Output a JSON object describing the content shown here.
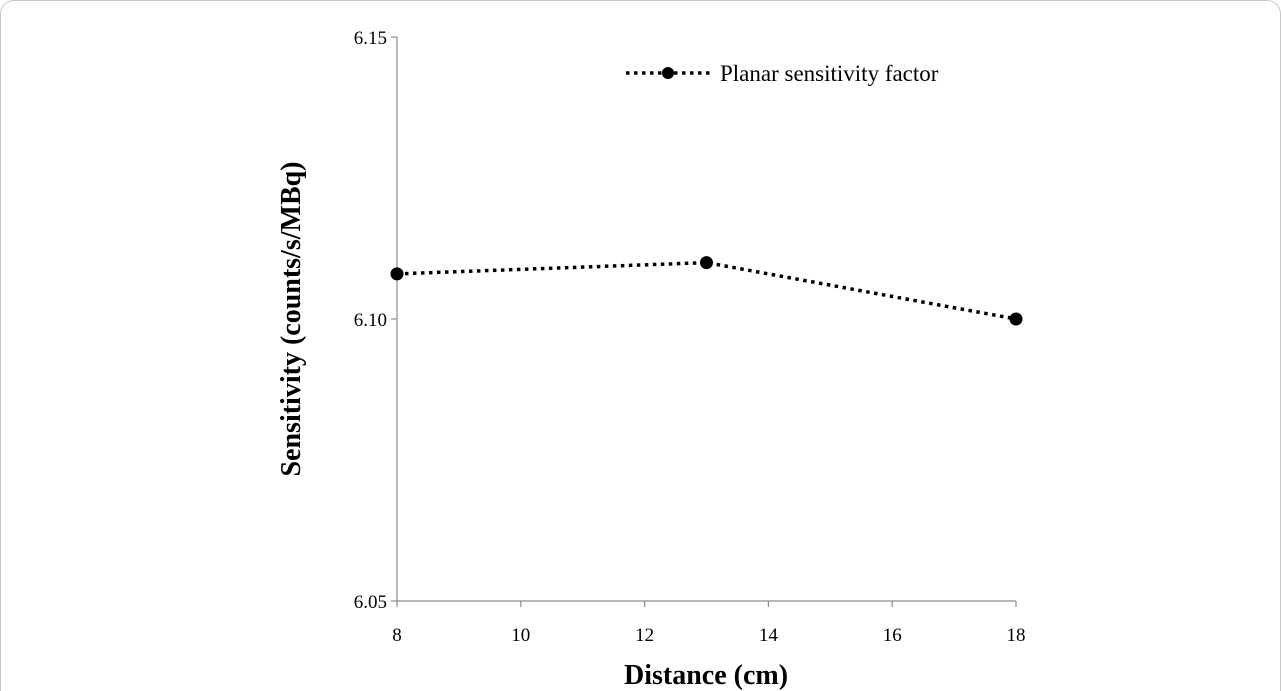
{
  "chart_data": {
    "type": "line",
    "xlabel": "Distance (cm)",
    "ylabel": "Sensitivity (counts/s/MBq)",
    "xlim": [
      8,
      18
    ],
    "ylim": [
      6.05,
      6.15
    ],
    "x_ticks": [
      "8",
      "10",
      "12",
      "14",
      "16",
      "18"
    ],
    "y_ticks": [
      "6.05",
      "6.10",
      "6.15"
    ],
    "series": [
      {
        "name": "Planar sensitivity factor",
        "x": [
          8,
          13,
          18
        ],
        "y": [
          6.108,
          6.11,
          6.1
        ],
        "line_style": "dotted",
        "marker": "circle",
        "color": "#000000"
      }
    ],
    "legend_position": "top-right",
    "grid": false
  }
}
